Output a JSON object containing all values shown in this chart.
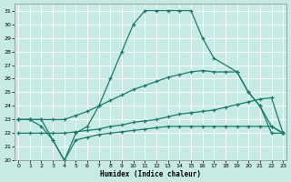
{
  "xlabel": "Humidex (Indice chaleur)",
  "background_color": "#c8eae4",
  "grid_color": "#b0ddd6",
  "line_color": "#1a7a6e",
  "xlim": [
    -0.3,
    23.3
  ],
  "ylim": [
    20,
    31.5
  ],
  "xticks": [
    0,
    1,
    2,
    3,
    4,
    5,
    6,
    7,
    8,
    9,
    10,
    11,
    12,
    13,
    14,
    15,
    16,
    17,
    18,
    19,
    20,
    21,
    22,
    23
  ],
  "yticks": [
    20,
    21,
    22,
    23,
    24,
    25,
    26,
    27,
    28,
    29,
    30,
    31
  ],
  "lines": [
    {
      "x": [
        0,
        1,
        2,
        3,
        4,
        5,
        6,
        7,
        8,
        9,
        10,
        11,
        12,
        13,
        14,
        15,
        16,
        17,
        19,
        20,
        21,
        22,
        23
      ],
      "y": [
        23,
        23,
        23,
        21.5,
        20,
        22,
        22.5,
        24,
        26,
        28,
        30,
        31,
        31,
        31,
        31,
        31,
        29,
        27.5,
        26.5,
        25,
        24,
        22.5,
        22
      ]
    },
    {
      "x": [
        0,
        1,
        2,
        3,
        4,
        5,
        6,
        7,
        8,
        9,
        10,
        11,
        12,
        13,
        14,
        15,
        16,
        17,
        18,
        19,
        20,
        21,
        22,
        23
      ],
      "y": [
        23,
        23,
        23,
        23,
        23,
        23.3,
        23.6,
        24.0,
        24.4,
        24.8,
        25.2,
        25.5,
        25.8,
        26.1,
        26.3,
        26.5,
        26.6,
        26.5,
        26.5,
        26.5,
        25,
        24,
        22,
        22
      ]
    },
    {
      "x": [
        0,
        1,
        2,
        3,
        4,
        5,
        6,
        7,
        8,
        9,
        10,
        11,
        12,
        13,
        14,
        15,
        16,
        17,
        18,
        19,
        20,
        21,
        22,
        23
      ],
      "y": [
        22,
        22,
        22,
        22,
        22,
        22.1,
        22.2,
        22.3,
        22.5,
        22.6,
        22.8,
        22.9,
        23.0,
        23.2,
        23.4,
        23.5,
        23.6,
        23.7,
        23.9,
        24.1,
        24.3,
        24.5,
        24.6,
        22
      ]
    },
    {
      "x": [
        0,
        1,
        2,
        3,
        4,
        5,
        6,
        7,
        8,
        9,
        10,
        11,
        12,
        13,
        14,
        15,
        16,
        17,
        18,
        19,
        20,
        21,
        22,
        23
      ],
      "y": [
        23,
        23,
        22.5,
        21.5,
        20,
        21.5,
        21.7,
        21.9,
        22.0,
        22.1,
        22.2,
        22.3,
        22.4,
        22.5,
        22.5,
        22.5,
        22.5,
        22.5,
        22.5,
        22.5,
        22.5,
        22.5,
        22.5,
        22
      ]
    }
  ]
}
